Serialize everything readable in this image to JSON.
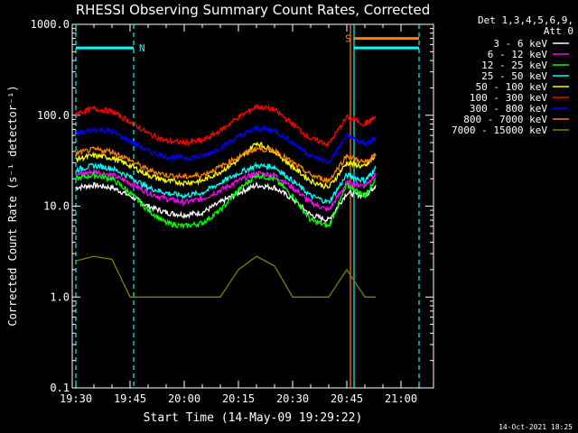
{
  "chart_data": {
    "type": "line",
    "title": "RHESSI Observing Summary Count Rates, Corrected",
    "xlabel": "Start Time (14-May-09 19:29:22)",
    "ylabel": "Corrected Count Rate (s⁻¹ detector⁻¹)",
    "yscale": "log",
    "ylim": [
      0.1,
      1000
    ],
    "xlim": [
      "19:29",
      "21:09"
    ],
    "x_ticks": [
      "19:30",
      "19:45",
      "20:00",
      "20:15",
      "20:30",
      "20:45",
      "21:00"
    ],
    "y_ticks": [
      "0.1",
      "1.0",
      "10.0",
      "100.0",
      "1000.0"
    ],
    "legend_header": [
      "Det 1,3,4,5,6,9,",
      "Att 0"
    ],
    "legend_position": "right",
    "x": [
      "19:30",
      "19:35",
      "19:40",
      "19:45",
      "19:50",
      "19:55",
      "20:00",
      "20:05",
      "20:10",
      "20:15",
      "20:20",
      "20:25",
      "20:30",
      "20:35",
      "20:40",
      "20:45",
      "20:50",
      "20:53"
    ],
    "series": [
      {
        "name": "3 - 6 keV",
        "color": "#ffffff",
        "values": [
          16,
          17,
          16,
          13,
          10,
          8.5,
          8,
          8.5,
          11,
          14,
          17,
          16,
          12,
          8,
          7,
          14,
          13,
          17
        ]
      },
      {
        "name": "6 - 12 keV",
        "color": "#ff00ff",
        "values": [
          22,
          24,
          22,
          18,
          14,
          12,
          11,
          12,
          15,
          19,
          23,
          22,
          16,
          11,
          9,
          18,
          17,
          22
        ]
      },
      {
        "name": "12 - 25 keV",
        "color": "#00ff00",
        "values": [
          20,
          22,
          20,
          14,
          9,
          6.5,
          6,
          6.5,
          9,
          15,
          22,
          20,
          13,
          7,
          6,
          17,
          13,
          20
        ]
      },
      {
        "name": "25 - 50 keV",
        "color": "#00ffff",
        "values": [
          25,
          28,
          26,
          21,
          16,
          14,
          13,
          14,
          18,
          23,
          28,
          27,
          19,
          13,
          11,
          22,
          19,
          26
        ]
      },
      {
        "name": "50 - 100 keV",
        "color": "#ffff00",
        "values": [
          33,
          36,
          34,
          28,
          22,
          19,
          18,
          19,
          24,
          32,
          50,
          40,
          27,
          19,
          16,
          30,
          27,
          36
        ]
      },
      {
        "name": "100 - 300 keV",
        "color": "#ff0000",
        "values": [
          105,
          118,
          110,
          85,
          63,
          52,
          50,
          52,
          68,
          95,
          125,
          115,
          80,
          55,
          48,
          95,
          80,
          95
        ]
      },
      {
        "name": "300 - 800 keV",
        "color": "#0000ff",
        "values": [
          62,
          70,
          66,
          52,
          40,
          35,
          34,
          35,
          44,
          58,
          72,
          68,
          50,
          36,
          30,
          60,
          48,
          55
        ]
      },
      {
        "name": "800 - 7000 keV",
        "color": "#ff8000",
        "values": [
          38,
          42,
          40,
          32,
          25,
          22,
          21,
          22,
          27,
          35,
          43,
          41,
          30,
          22,
          19,
          36,
          30,
          36
        ]
      },
      {
        "name": "7000 - 15000 keV",
        "color": "#808000",
        "values": [
          2.5,
          2.8,
          2.6,
          1.0,
          1.0,
          1.0,
          1.0,
          1.0,
          1.0,
          2.0,
          2.8,
          2.2,
          1.0,
          1.0,
          1.0,
          2.0,
          1.0,
          1.0
        ]
      }
    ],
    "flags": [
      {
        "label": "N",
        "color": "#00ffff",
        "level": 550,
        "from": "19:30",
        "to": "19:46"
      },
      {
        "label": "S",
        "color": "#ff8000",
        "level": 700,
        "from": "20:47",
        "to": "21:05"
      },
      {
        "label": "",
        "color": "#00ffff",
        "level": 550,
        "from": "20:47",
        "to": "21:05"
      }
    ],
    "vertical_lines": [
      {
        "time": "19:30",
        "color": "#00ffff",
        "style": "dashed"
      },
      {
        "time": "19:46",
        "color": "#00ffff",
        "style": "dashed"
      },
      {
        "time": "20:46",
        "color": "#ff8000",
        "style": "solid"
      },
      {
        "time": "20:47",
        "color": "#00ffff",
        "style": "solid"
      },
      {
        "time": "21:05",
        "color": "#00ffff",
        "style": "dashed"
      }
    ],
    "timestamp": "14-Oct-2021 18:25"
  }
}
